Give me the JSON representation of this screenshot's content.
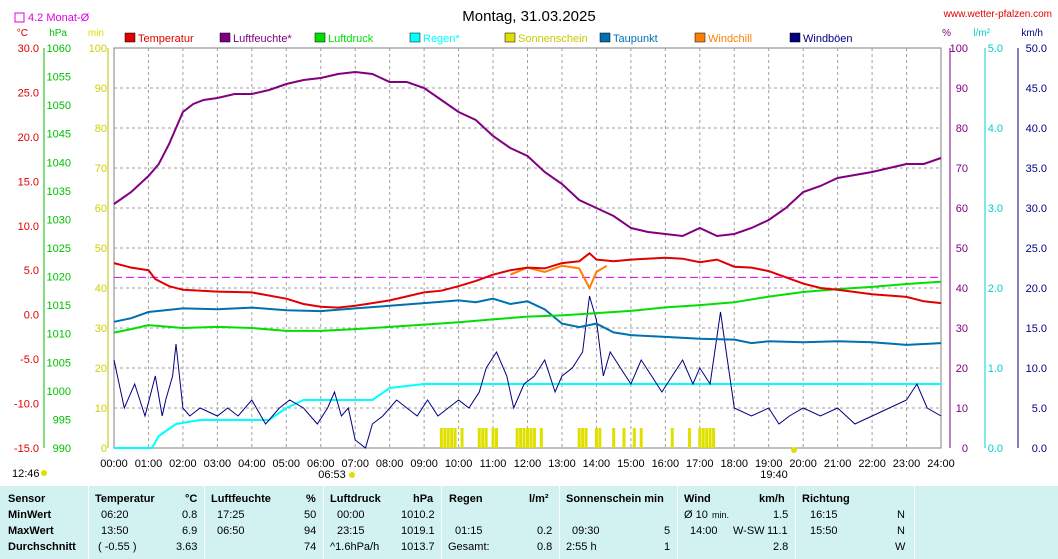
{
  "title": "Montag, 31.03.2025",
  "site": "www.wetter-pfalzen.com",
  "avg_label": "4.2 Monat-Ø",
  "colors": {
    "temperature": "#e00000",
    "humidity": "#800080",
    "pressure": "#00e000",
    "rain": "#00ffff",
    "sunshine": "#e0e000",
    "dewpoint": "#0070b0",
    "windchill": "#ff8000",
    "gusts": "#000080",
    "avg_line": "#e000e0"
  },
  "legend": [
    "Temperatur",
    "Luftfeuchte*",
    "Luftdruck",
    "Regen*",
    "Sonnenschein",
    "Taupunkt",
    "Windchill",
    "Windböen"
  ],
  "axes": {
    "celsius": {
      "unit": "°C",
      "ticks": [
        "30.0",
        "25.0",
        "20.0",
        "15.0",
        "10.0",
        "5.0",
        "0.0",
        "-5.0",
        "-10.0",
        "-15.0"
      ]
    },
    "hpa": {
      "unit": "hPa",
      "ticks": [
        "1060",
        "1055",
        "1050",
        "1045",
        "1040",
        "1035",
        "1030",
        "1025",
        "1020",
        "1015",
        "1010",
        "1005",
        "1000",
        "995",
        "990"
      ]
    },
    "min": {
      "unit": "min",
      "ticks": [
        "100",
        "90",
        "80",
        "70",
        "60",
        "50",
        "40",
        "30",
        "20",
        "10",
        "0"
      ]
    },
    "percent": {
      "unit": "%",
      "ticks": [
        "100",
        "90",
        "80",
        "70",
        "60",
        "50",
        "40",
        "30",
        "20",
        "10",
        "0"
      ]
    },
    "lm2": {
      "unit": "l/m²",
      "ticks": [
        "5.0",
        "4.0",
        "3.0",
        "2.0",
        "1.0",
        "0.0"
      ]
    },
    "kmh": {
      "unit": "km/h",
      "ticks": [
        "50.0",
        "45.0",
        "40.0",
        "35.0",
        "30.0",
        "25.0",
        "20.0",
        "15.0",
        "10.0",
        "5.0",
        "0.0"
      ]
    },
    "time": [
      "00:00",
      "01:00",
      "02:00",
      "03:00",
      "04:00",
      "05:00",
      "06:00",
      "07:00",
      "08:00",
      "09:00",
      "10:00",
      "11:00",
      "12:00",
      "13:00",
      "14:00",
      "15:00",
      "16:00",
      "17:00",
      "18:00",
      "19:00",
      "20:00",
      "21:00",
      "22:00",
      "23:00",
      "24:00"
    ]
  },
  "sunrise": "06:53",
  "sunset": "19:40",
  "sun_dur": "12:46",
  "chart_data": {
    "type": "line",
    "x_unit": "hours",
    "xlim": [
      0,
      24
    ],
    "avg_temperature": 4.2,
    "series": [
      {
        "name": "Temperatur",
        "axis": "celsius",
        "points": [
          [
            0,
            5.8
          ],
          [
            0.5,
            5.3
          ],
          [
            1,
            5.0
          ],
          [
            1.2,
            4.0
          ],
          [
            1.6,
            3.2
          ],
          [
            2,
            2.8
          ],
          [
            3,
            2.6
          ],
          [
            4,
            2.5
          ],
          [
            5,
            1.8
          ],
          [
            5.5,
            1.2
          ],
          [
            6,
            0.9
          ],
          [
            6.5,
            0.8
          ],
          [
            7,
            1.0
          ],
          [
            8,
            1.6
          ],
          [
            9,
            2.5
          ],
          [
            9.5,
            2.7
          ],
          [
            10,
            3.2
          ],
          [
            10.5,
            3.8
          ],
          [
            11,
            4.5
          ],
          [
            11.5,
            5.0
          ],
          [
            12,
            5.3
          ],
          [
            12.5,
            5.2
          ],
          [
            13,
            5.8
          ],
          [
            13.5,
            6.0
          ],
          [
            13.8,
            6.9
          ],
          [
            14,
            6.2
          ],
          [
            14.5,
            6.0
          ],
          [
            15,
            6.2
          ],
          [
            16,
            6.4
          ],
          [
            16.5,
            6.3
          ],
          [
            17,
            5.9
          ],
          [
            17.5,
            6.2
          ],
          [
            18,
            5.4
          ],
          [
            18.5,
            5.3
          ],
          [
            19,
            4.9
          ],
          [
            19.5,
            4.2
          ],
          [
            20,
            3.5
          ],
          [
            20.5,
            3.0
          ],
          [
            21,
            2.8
          ],
          [
            22,
            2.3
          ],
          [
            23,
            2.0
          ],
          [
            23.5,
            1.5
          ],
          [
            24,
            1.3
          ]
        ]
      },
      {
        "name": "Luftfeuchte*",
        "axis": "percent",
        "points": [
          [
            0,
            61
          ],
          [
            0.5,
            64
          ],
          [
            1,
            68
          ],
          [
            1.3,
            71
          ],
          [
            1.6,
            76
          ],
          [
            1.8,
            80
          ],
          [
            2,
            84
          ],
          [
            2.3,
            86
          ],
          [
            2.6,
            87
          ],
          [
            3,
            87.5
          ],
          [
            3.5,
            88.5
          ],
          [
            4,
            88.5
          ],
          [
            4.5,
            89.5
          ],
          [
            5,
            91
          ],
          [
            5.5,
            92
          ],
          [
            6,
            92.5
          ],
          [
            6.5,
            93.5
          ],
          [
            7,
            94
          ],
          [
            7.5,
            93.5
          ],
          [
            8,
            91.5
          ],
          [
            8.5,
            91.5
          ],
          [
            9,
            90
          ],
          [
            9.5,
            87
          ],
          [
            10,
            84
          ],
          [
            10.5,
            82
          ],
          [
            11,
            78
          ],
          [
            11.5,
            75
          ],
          [
            12,
            73
          ],
          [
            12.5,
            69
          ],
          [
            13,
            66
          ],
          [
            13.5,
            62
          ],
          [
            14,
            60
          ],
          [
            14.5,
            58
          ],
          [
            15,
            55
          ],
          [
            15.5,
            54
          ],
          [
            16,
            53.5
          ],
          [
            16.5,
            53
          ],
          [
            17,
            55
          ],
          [
            17.5,
            53
          ],
          [
            18,
            53.5
          ],
          [
            18.5,
            55
          ],
          [
            19,
            57
          ],
          [
            19.5,
            60
          ],
          [
            20,
            64
          ],
          [
            20.5,
            65.5
          ],
          [
            21,
            67.5
          ],
          [
            22,
            69
          ],
          [
            23,
            71
          ],
          [
            23.5,
            71
          ],
          [
            24,
            72.5
          ]
        ]
      },
      {
        "name": "Luftdruck",
        "axis": "hpa",
        "points": [
          [
            0,
            1010.2
          ],
          [
            0.5,
            1010.8
          ],
          [
            1,
            1011.5
          ],
          [
            2,
            1011
          ],
          [
            3,
            1011.2
          ],
          [
            4,
            1011
          ],
          [
            5,
            1010.5
          ],
          [
            6,
            1010.5
          ],
          [
            7,
            1010.8
          ],
          [
            8,
            1011.2
          ],
          [
            9,
            1011.6
          ],
          [
            10,
            1012
          ],
          [
            11,
            1012.5
          ],
          [
            12,
            1013
          ],
          [
            13,
            1013.2
          ],
          [
            14,
            1013.6
          ],
          [
            15,
            1014
          ],
          [
            16,
            1014.6
          ],
          [
            17,
            1015
          ],
          [
            18,
            1015.5
          ],
          [
            19,
            1016.5
          ],
          [
            20,
            1017.3
          ],
          [
            21,
            1017.8
          ],
          [
            22,
            1018.2
          ],
          [
            23,
            1018.7
          ],
          [
            24,
            1019.1
          ]
        ]
      },
      {
        "name": "Regen*",
        "axis": "lm2",
        "points": [
          [
            0,
            0
          ],
          [
            1.1,
            0
          ],
          [
            1.3,
            0.15
          ],
          [
            1.8,
            0.3
          ],
          [
            2.5,
            0.35
          ],
          [
            4.5,
            0.35
          ],
          [
            5,
            0.5
          ],
          [
            5.5,
            0.6
          ],
          [
            6,
            0.6
          ],
          [
            7.5,
            0.6
          ],
          [
            8,
            0.75
          ],
          [
            9,
            0.8
          ],
          [
            24,
            0.8
          ]
        ]
      },
      {
        "name": "Taupunkt",
        "axis": "celsius",
        "points": [
          [
            0,
            -0.8
          ],
          [
            0.5,
            -0.4
          ],
          [
            1,
            0.3
          ],
          [
            2,
            0.7
          ],
          [
            3,
            0.6
          ],
          [
            4,
            0.8
          ],
          [
            5,
            0.5
          ],
          [
            6,
            0.4
          ],
          [
            7,
            0.7
          ],
          [
            8,
            1.0
          ],
          [
            9,
            1.3
          ],
          [
            10,
            1.6
          ],
          [
            10.5,
            1.4
          ],
          [
            11,
            1.8
          ],
          [
            11.5,
            1.2
          ],
          [
            12,
            1.5
          ],
          [
            12.5,
            0.6
          ],
          [
            13,
            -1.0
          ],
          [
            13.5,
            -1.4
          ],
          [
            14,
            -1.0
          ],
          [
            14.5,
            -2.0
          ],
          [
            15,
            -2.3
          ],
          [
            16,
            -2.5
          ],
          [
            17,
            -2.7
          ],
          [
            18,
            -2.8
          ],
          [
            18.5,
            -3.2
          ],
          [
            19,
            -3.0
          ],
          [
            20,
            -3.1
          ],
          [
            21,
            -3.0
          ],
          [
            22,
            -3.1
          ],
          [
            23,
            -3.4
          ],
          [
            24,
            -3.2
          ]
        ]
      },
      {
        "name": "Windchill",
        "axis": "celsius",
        "points": [
          [
            11.5,
            4.5
          ],
          [
            12,
            5.3
          ],
          [
            12.5,
            4.8
          ],
          [
            13,
            5.5
          ],
          [
            13.5,
            5.2
          ],
          [
            13.8,
            3.0
          ],
          [
            14,
            4.8
          ],
          [
            14.3,
            5.5
          ]
        ]
      },
      {
        "name": "Windböen",
        "axis": "kmh",
        "points": [
          [
            0,
            11
          ],
          [
            0.3,
            5
          ],
          [
            0.6,
            8
          ],
          [
            0.9,
            4
          ],
          [
            1.2,
            9
          ],
          [
            1.4,
            4
          ],
          [
            1.5,
            6
          ],
          [
            1.7,
            9
          ],
          [
            1.8,
            13
          ],
          [
            2.0,
            5
          ],
          [
            2.2,
            4
          ],
          [
            2.5,
            5
          ],
          [
            3,
            4
          ],
          [
            3.3,
            5
          ],
          [
            3.6,
            4
          ],
          [
            4,
            6
          ],
          [
            4.4,
            3
          ],
          [
            4.8,
            5
          ],
          [
            5.1,
            6
          ],
          [
            5.5,
            5
          ],
          [
            5.9,
            3
          ],
          [
            6.2,
            5
          ],
          [
            6.4,
            7
          ],
          [
            6.6,
            4
          ],
          [
            6.8,
            5
          ],
          [
            7.0,
            1
          ],
          [
            7.3,
            0
          ],
          [
            7.5,
            3
          ],
          [
            7.8,
            4
          ],
          [
            8.2,
            6
          ],
          [
            8.5,
            5
          ],
          [
            8.8,
            4
          ],
          [
            9.1,
            6
          ],
          [
            9.4,
            4
          ],
          [
            9.7,
            5
          ],
          [
            10,
            6
          ],
          [
            10.3,
            5
          ],
          [
            10.6,
            7
          ],
          [
            10.8,
            10
          ],
          [
            11.1,
            12
          ],
          [
            11.4,
            9
          ],
          [
            11.6,
            5
          ],
          [
            11.9,
            8
          ],
          [
            12.2,
            9
          ],
          [
            12.5,
            11
          ],
          [
            12.8,
            7
          ],
          [
            13,
            9
          ],
          [
            13.3,
            10
          ],
          [
            13.6,
            12
          ],
          [
            13.8,
            19
          ],
          [
            14,
            16
          ],
          [
            14.2,
            9
          ],
          [
            14.4,
            12
          ],
          [
            14.7,
            10
          ],
          [
            15,
            8
          ],
          [
            15.3,
            11
          ],
          [
            15.6,
            9
          ],
          [
            15.9,
            7
          ],
          [
            16.2,
            9
          ],
          [
            16.5,
            11
          ],
          [
            16.8,
            8
          ],
          [
            17,
            10
          ],
          [
            17.3,
            8
          ],
          [
            17.6,
            17
          ],
          [
            17.8,
            11
          ],
          [
            18,
            5
          ],
          [
            18.5,
            4
          ],
          [
            19,
            5
          ],
          [
            19.3,
            3
          ],
          [
            19.6,
            4
          ],
          [
            20,
            5
          ],
          [
            20.5,
            4
          ],
          [
            21,
            5
          ],
          [
            21.5,
            3
          ],
          [
            22,
            4
          ],
          [
            22.5,
            5
          ],
          [
            23,
            6
          ],
          [
            23.3,
            8
          ],
          [
            23.6,
            5
          ],
          [
            24,
            4
          ]
        ]
      }
    ],
    "sunshine_hours": [
      9.5,
      9.6,
      9.7,
      9.8,
      9.9,
      10.1,
      10.6,
      10.7,
      10.8,
      11.0,
      11.1,
      11.7,
      11.8,
      11.9,
      12.0,
      12.1,
      12.2,
      12.4,
      13.5,
      13.6,
      13.7,
      14.0,
      14.1,
      14.5,
      14.8,
      15.1,
      15.3,
      16.2,
      16.7,
      17.0,
      17.1,
      17.2,
      17.3,
      17.4
    ]
  },
  "table": {
    "headers": {
      "sensor": "Sensor",
      "temp": "Temperatur",
      "temp_u": "°C",
      "hum": "Luftfeuchte",
      "hum_u": "%",
      "press": "Luftdruck",
      "press_u": "hPa",
      "rain": "Regen",
      "rain_u": "l/m²",
      "sun": "Sonnenschein min",
      "wind": "Wind",
      "wind_u": "km/h",
      "dir": "Richtung"
    },
    "rows": [
      {
        "label": "MinWert",
        "t_time": "06:20",
        "t_val": "0.8",
        "h_time": "17:25",
        "h_val": "50",
        "p_time": "00:00",
        "p_val": "1010.2",
        "r_time": "",
        "r_val": "",
        "s_time": "",
        "s_val": "",
        "w_time": "Ø 10",
        "w_unit": "min.",
        "w_dir": "",
        "w_val": "1.5",
        "d_time": "16:15",
        "d_val": "N"
      },
      {
        "label": "MaxWert",
        "t_time": "13:50",
        "t_val": "6.9",
        "h_time": "06:50",
        "h_val": "94",
        "p_time": "23:15",
        "p_val": "1019.1",
        "r_time": "01:15",
        "r_val": "0.2",
        "s_time": "09:30",
        "s_val": "5",
        "w_time": "14:00",
        "w_unit": "",
        "w_dir": "W-SW",
        "w_val": "11.1",
        "d_time": "15:50",
        "d_val": "N"
      },
      {
        "label": "Durchschnitt",
        "t_time": "( -0.55 )",
        "t_val": "3.63",
        "h_time": "",
        "h_val": "74",
        "p_time": "^1.6hPa/h",
        "p_val": "1013.7",
        "r_time": "Gesamt:",
        "r_val": "0.8",
        "s_time": "2:55 h",
        "s_val": "1",
        "w_time": "",
        "w_unit": "",
        "w_dir": "",
        "w_val": "2.8",
        "d_time": "",
        "d_val": "W"
      }
    ]
  }
}
